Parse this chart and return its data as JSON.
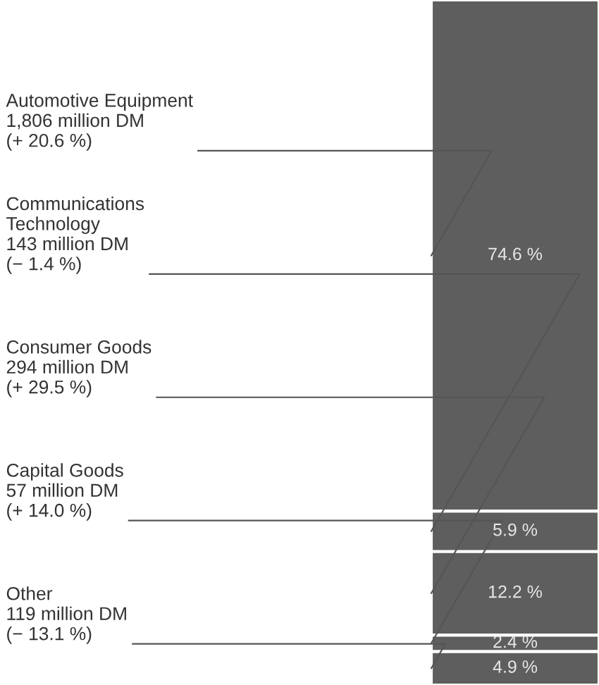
{
  "chart_data": {
    "type": "bar",
    "stacked": true,
    "categories": [
      null
    ],
    "series": [
      {
        "name": "Other\n119 million DM\n(− 13.1 %)",
        "color": "#5e5e5e",
        "values": [
          4.9
        ],
        "value_labels": [
          "4.9 %"
        ]
      },
      {
        "name": "Capital Goods\n57 million DM\n(+ 14.0 %)",
        "color": "#5e5e5e",
        "values": [
          2.4
        ],
        "value_labels": [
          "2.4 %"
        ]
      },
      {
        "name": "Consumer Goods\n294 million DM\n(+ 29.5 %)",
        "color": "#5e5e5e",
        "values": [
          12.2
        ],
        "value_labels": [
          "12.2 %"
        ]
      },
      {
        "name": "Communications\nTechnology\n143 million DM\n(− 1.4 %)",
        "color": "#5e5e5e",
        "values": [
          5.9
        ],
        "value_labels": [
          "5.9 %"
        ]
      },
      {
        "name": "Automotive Equipment\n1,806 million DM\n(+ 20.6 %)",
        "color": "#5e5e5e",
        "values": [
          74.6
        ],
        "value_labels": [
          "74.6 %"
        ]
      }
    ]
  }
}
